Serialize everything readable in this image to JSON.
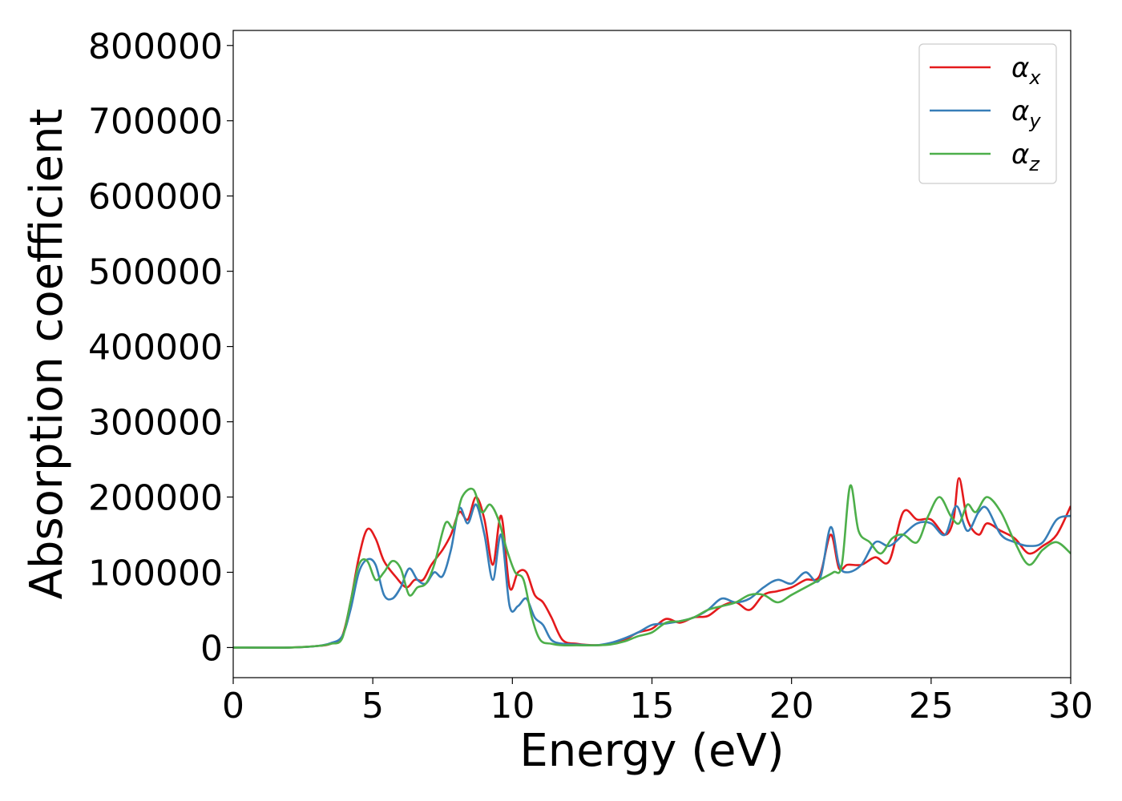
{
  "chart_data": {
    "type": "line",
    "xlabel": "Energy (eV)",
    "ylabel": "Absorption coefficient",
    "xlim": [
      0,
      30
    ],
    "ylim": [
      -40000,
      820000
    ],
    "x_ticks": [
      0,
      5,
      10,
      15,
      20,
      25,
      30
    ],
    "y_ticks": [
      0,
      100000,
      200000,
      300000,
      400000,
      500000,
      600000,
      700000,
      800000
    ],
    "grid": false,
    "legend_position": "top-right",
    "series": [
      {
        "name": "α_x",
        "name_base": "α",
        "name_sub": "x",
        "color": "#e41a1c",
        "x": [
          0,
          2,
          3,
          3.5,
          3.9,
          4.2,
          4.5,
          4.8,
          5.1,
          5.4,
          5.8,
          6.2,
          6.5,
          6.8,
          7.1,
          7.5,
          7.8,
          8.1,
          8.4,
          8.7,
          9.0,
          9.3,
          9.6,
          9.9,
          10.2,
          10.5,
          10.8,
          11.1,
          11.4,
          11.8,
          12.3,
          13.0,
          13.5,
          14.0,
          14.5,
          15.0,
          15.5,
          16.0,
          16.5,
          17.0,
          17.5,
          18.0,
          18.5,
          19.0,
          19.5,
          20.0,
          20.5,
          21.0,
          21.4,
          21.7,
          22.0,
          22.5,
          23.0,
          23.5,
          24.0,
          24.5,
          25.0,
          25.5,
          25.8,
          26.0,
          26.3,
          26.7,
          27.0,
          27.5,
          28.0,
          28.5,
          29.0,
          29.5,
          30.0
        ],
        "values": [
          0,
          0,
          2000,
          5000,
          15000,
          60000,
          120000,
          157000,
          145000,
          115000,
          95000,
          80000,
          90000,
          90000,
          110000,
          130000,
          150000,
          180000,
          170000,
          200000,
          170000,
          110000,
          175000,
          80000,
          100000,
          100000,
          70000,
          60000,
          40000,
          10000,
          5000,
          3000,
          5000,
          10000,
          20000,
          25000,
          38000,
          33000,
          40000,
          42000,
          55000,
          60000,
          50000,
          70000,
          75000,
          80000,
          90000,
          95000,
          150000,
          105000,
          110000,
          110000,
          120000,
          115000,
          180000,
          170000,
          170000,
          150000,
          170000,
          225000,
          170000,
          150000,
          165000,
          155000,
          145000,
          125000,
          135000,
          150000,
          188000
        ]
      },
      {
        "name": "α_y",
        "name_base": "α",
        "name_sub": "y",
        "color": "#377eb8",
        "x": [
          0,
          2,
          3,
          3.5,
          3.9,
          4.2,
          4.5,
          4.8,
          5.1,
          5.4,
          5.7,
          6.0,
          6.3,
          6.6,
          6.9,
          7.2,
          7.5,
          7.8,
          8.1,
          8.4,
          8.7,
          9.0,
          9.3,
          9.6,
          9.9,
          10.2,
          10.5,
          10.8,
          11.1,
          11.4,
          11.8,
          12.3,
          13.0,
          13.5,
          14.0,
          14.5,
          15.0,
          15.5,
          16.0,
          16.5,
          17.0,
          17.5,
          18.0,
          18.5,
          19.0,
          19.5,
          20.0,
          20.5,
          21.0,
          21.4,
          21.7,
          22.0,
          22.5,
          23.0,
          23.5,
          24.0,
          24.5,
          25.0,
          25.5,
          25.9,
          26.3,
          26.7,
          27.0,
          27.5,
          28.0,
          28.5,
          29.0,
          29.5,
          30.0
        ],
        "values": [
          0,
          0,
          2000,
          6000,
          15000,
          50000,
          100000,
          117000,
          110000,
          70000,
          65000,
          80000,
          105000,
          90000,
          85000,
          100000,
          95000,
          130000,
          185000,
          165000,
          190000,
          150000,
          90000,
          150000,
          55000,
          55000,
          65000,
          40000,
          30000,
          10000,
          5000,
          4000,
          3000,
          6000,
          12000,
          20000,
          30000,
          32000,
          35000,
          40000,
          50000,
          65000,
          60000,
          65000,
          80000,
          90000,
          85000,
          100000,
          90000,
          160000,
          110000,
          100000,
          110000,
          140000,
          135000,
          150000,
          165000,
          165000,
          150000,
          188000,
          155000,
          180000,
          185000,
          150000,
          140000,
          135000,
          140000,
          170000,
          175000
        ]
      },
      {
        "name": "α_z",
        "name_base": "α",
        "name_sub": "z",
        "color": "#4daf4a",
        "x": [
          0,
          2,
          3,
          3.5,
          3.9,
          4.2,
          4.5,
          4.8,
          5.1,
          5.4,
          5.7,
          6.0,
          6.3,
          6.6,
          6.9,
          7.2,
          7.6,
          7.9,
          8.2,
          8.6,
          8.9,
          9.2,
          9.5,
          9.8,
          10.1,
          10.4,
          10.7,
          11.0,
          11.4,
          11.8,
          12.3,
          13.0,
          13.5,
          14.0,
          14.5,
          15.0,
          15.5,
          16.0,
          16.5,
          17.0,
          17.5,
          18.0,
          18.5,
          19.0,
          19.5,
          20.0,
          20.5,
          21.0,
          21.5,
          21.8,
          22.1,
          22.4,
          22.8,
          23.2,
          23.6,
          24.0,
          24.5,
          24.9,
          25.3,
          25.7,
          26.0,
          26.3,
          26.6,
          27.0,
          27.5,
          28.0,
          28.5,
          29.0,
          29.5,
          30.0
        ],
        "values": [
          0,
          0,
          2000,
          5000,
          12000,
          60000,
          110000,
          115000,
          90000,
          100000,
          115000,
          105000,
          70000,
          80000,
          85000,
          110000,
          165000,
          160000,
          200000,
          210000,
          180000,
          190000,
          170000,
          130000,
          100000,
          90000,
          40000,
          10000,
          5000,
          3000,
          3000,
          3000,
          4000,
          8000,
          15000,
          20000,
          33000,
          35000,
          40000,
          50000,
          55000,
          60000,
          70000,
          70000,
          60000,
          70000,
          80000,
          90000,
          100000,
          110000,
          215000,
          155000,
          140000,
          125000,
          145000,
          150000,
          140000,
          175000,
          200000,
          175000,
          165000,
          190000,
          180000,
          200000,
          180000,
          140000,
          110000,
          130000,
          140000,
          125000
        ]
      }
    ]
  }
}
